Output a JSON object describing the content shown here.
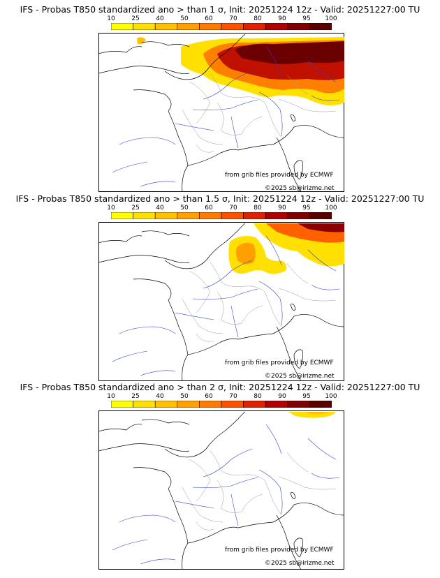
{
  "scale": {
    "ticks": [
      "10",
      "25",
      "40",
      "50",
      "60",
      "70",
      "80",
      "90",
      "95",
      "100"
    ],
    "colors": [
      "#ffff00",
      "#ffe000",
      "#ffc000",
      "#ffa000",
      "#ff7a00",
      "#ff5000",
      "#e02000",
      "#b00000",
      "#800000",
      "#5a0000"
    ]
  },
  "panels": [
    {
      "title": "IFS - Probas T850  standardized ano > than 1 σ, Init: 20251224 12z - Valid: 20251227:00 TU",
      "threshold": "1 σ"
    },
    {
      "title": "IFS - Probas T850  standardized ano > than 1.5 σ, Init: 20251224 12z - Valid: 20251227:00 TU",
      "threshold": "1.5 σ"
    },
    {
      "title": "IFS - Probas T850  standardized ano > than 2 σ, Init: 20251224 12z - Valid: 20251227:00 TU",
      "threshold": "2 σ"
    }
  ],
  "credits": {
    "source": "from grib files provided by ECMWF",
    "copyright": "©2025 sb@irizme.net"
  }
}
